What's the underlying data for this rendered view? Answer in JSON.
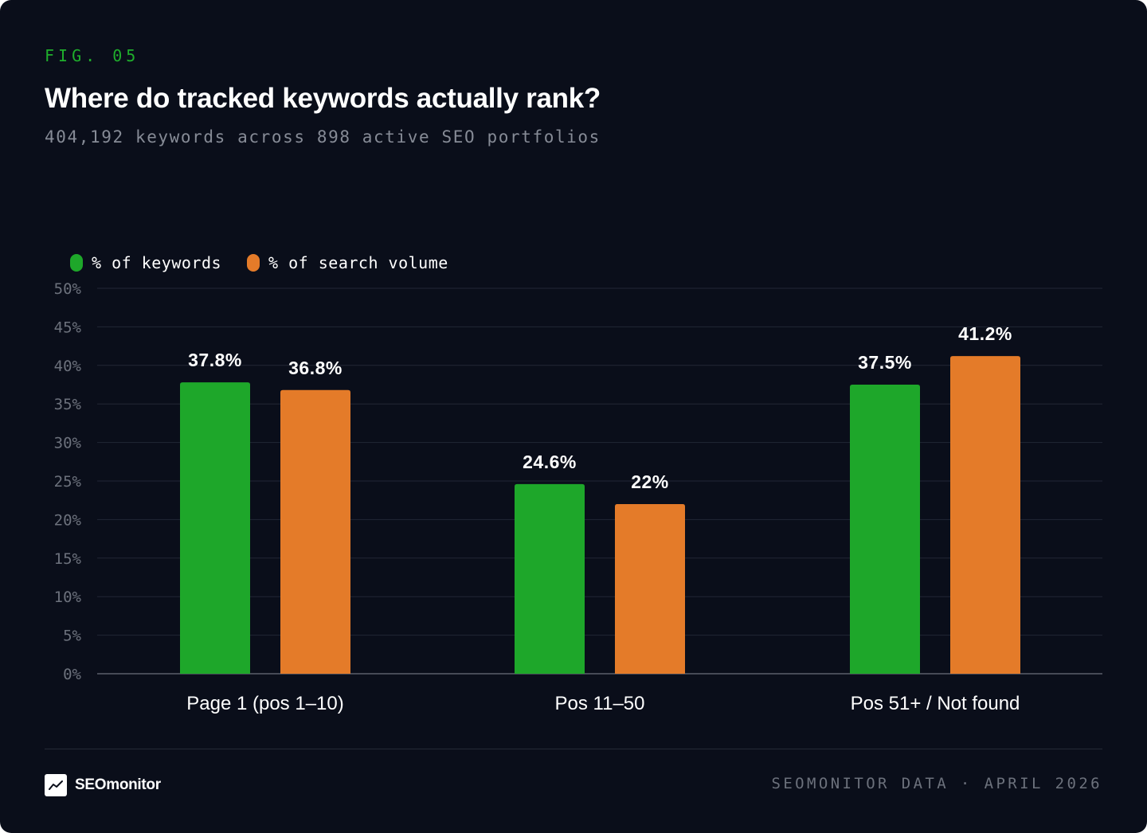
{
  "figure": {
    "label": "FIG. 05",
    "title": "Where do tracked keywords actually rank?",
    "subtitle": "404,192 keywords across 898 active SEO portfolios"
  },
  "chart_data": {
    "type": "bar",
    "categories": [
      "Page 1 (pos 1–10)",
      "Pos 11–50",
      "Pos 51+ / Not found"
    ],
    "series": [
      {
        "name": "% of keywords",
        "color": "#1ea72a",
        "values": [
          37.8,
          24.6,
          37.5
        ],
        "labels": [
          "37.8%",
          "24.6%",
          "37.5%"
        ]
      },
      {
        "name": "% of search volume",
        "color": "#e47b29",
        "values": [
          36.8,
          22,
          41.2
        ],
        "labels": [
          "36.8%",
          "22%",
          "41.2%"
        ]
      }
    ],
    "ylim": [
      0,
      50
    ],
    "yticks": [
      0,
      5,
      10,
      15,
      20,
      25,
      30,
      35,
      40,
      45,
      50
    ],
    "ytick_labels": [
      "0%",
      "5%",
      "10%",
      "15%",
      "20%",
      "25%",
      "30%",
      "35%",
      "40%",
      "45%",
      "50%"
    ],
    "grid": true,
    "legend_position": "top-left"
  },
  "footer": {
    "brand": "SEOmonitor",
    "brand_icon": "trend-line-icon",
    "source": "SEOMONITOR DATA · APRIL 2026"
  },
  "colors": {
    "background": "#0a0e1a",
    "accent": "#1fae2c",
    "keywords": "#1ea72a",
    "volume": "#e47b29"
  }
}
